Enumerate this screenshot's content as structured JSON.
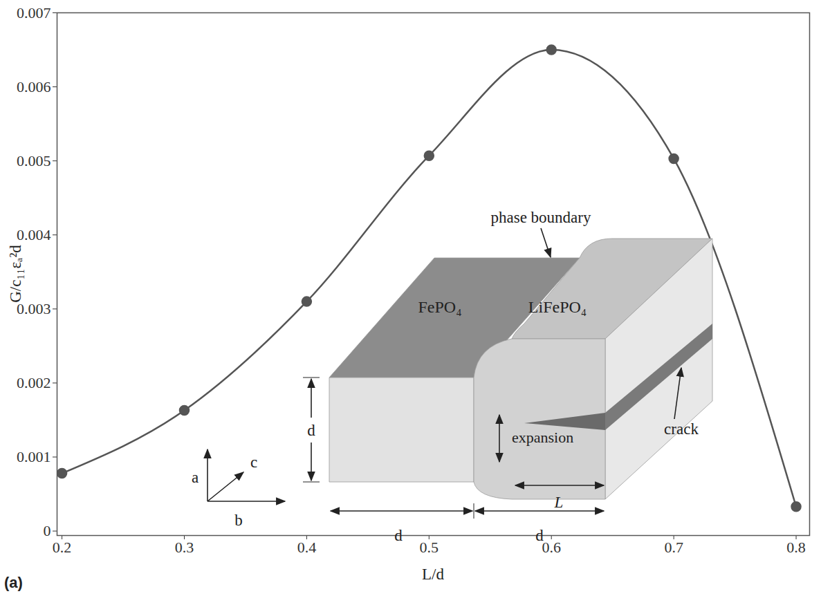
{
  "chart_data": {
    "type": "line",
    "x_label": "L/d",
    "y_label": "G/c₁₁εₐ²d",
    "panel_label": "(a)",
    "x": [
      0.2,
      0.3,
      0.4,
      0.5,
      0.6,
      0.7,
      0.8
    ],
    "values": [
      0.00078,
      0.00163,
      0.0031,
      0.00507,
      0.0065,
      0.00503,
      0.00033
    ],
    "color": "#555555",
    "marker": "circle",
    "line_style": "solid",
    "xlim": [
      0.196,
      0.811
    ],
    "xticks": [
      0.2,
      0.3,
      0.4,
      0.5,
      0.6,
      0.7,
      0.8
    ],
    "ylim": [
      -6e-05,
      0.007
    ],
    "yticks": [
      0,
      0.001,
      0.002,
      0.003,
      0.004,
      0.005,
      0.006,
      0.007
    ],
    "grid": false,
    "annotations": {
      "phase_boundary": "phase boundary",
      "left_phase": "FePO₄",
      "right_phase": "LiFePO₄",
      "expansion": "expansion",
      "crack": "crack",
      "thickness": "d",
      "left_width": "d",
      "right_width": "d",
      "crack_length": "L",
      "axis_a": "a",
      "axis_b": "b",
      "axis_c": "c"
    }
  }
}
